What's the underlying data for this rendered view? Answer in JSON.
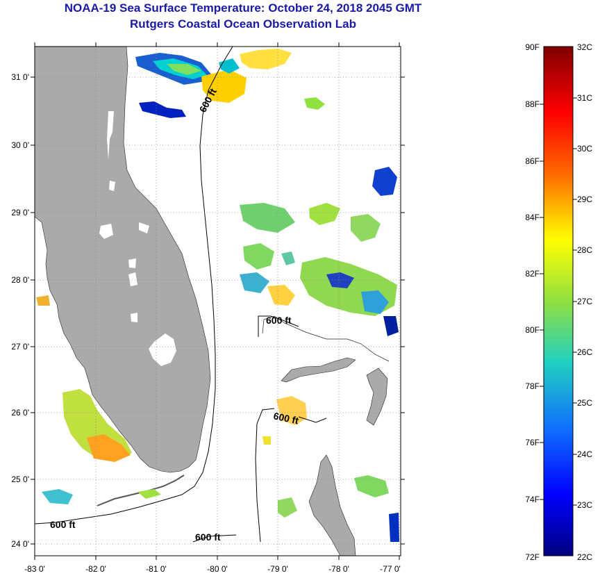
{
  "header": {
    "title": "NOAA-19 Sea Surface Temperature:  October 24, 2018 2045 GMT",
    "subtitle": "Rutgers Coastal Ocean Observation Lab"
  },
  "map": {
    "lat_labels": [
      "31 0'",
      "30 0'",
      "29 0'",
      "28 0'",
      "27 0'",
      "26 0'",
      "25 0'",
      "24 0'"
    ],
    "lon_labels": [
      "-83 0'",
      "-82 0'",
      "-81 0'",
      "-80 0'",
      "-79 0'",
      "-78 0'",
      "-77 0'"
    ],
    "contour_labels": [
      "600 ft",
      "600 ft",
      "600 ft",
      "600 ft",
      "600 ft"
    ],
    "colors": {
      "land": "#aaaaaa",
      "contour": "#000000",
      "grid": "#888888"
    }
  },
  "legend": {
    "fahrenheit": [
      "90F",
      "88F",
      "86F",
      "84F",
      "82F",
      "80F",
      "78F",
      "76F",
      "74F",
      "72F"
    ],
    "celsius": [
      "32C",
      "31C",
      "30C",
      "29C",
      "28C",
      "27C",
      "26C",
      "25C",
      "24C",
      "23C",
      "22C"
    ],
    "colors": {
      "top": "#800000",
      "high": "#ff2000",
      "warm": "#ff9000",
      "mid": "#ffff00",
      "cool": "#20c0e0",
      "low": "#0000ff",
      "bottom": "#000080"
    }
  }
}
